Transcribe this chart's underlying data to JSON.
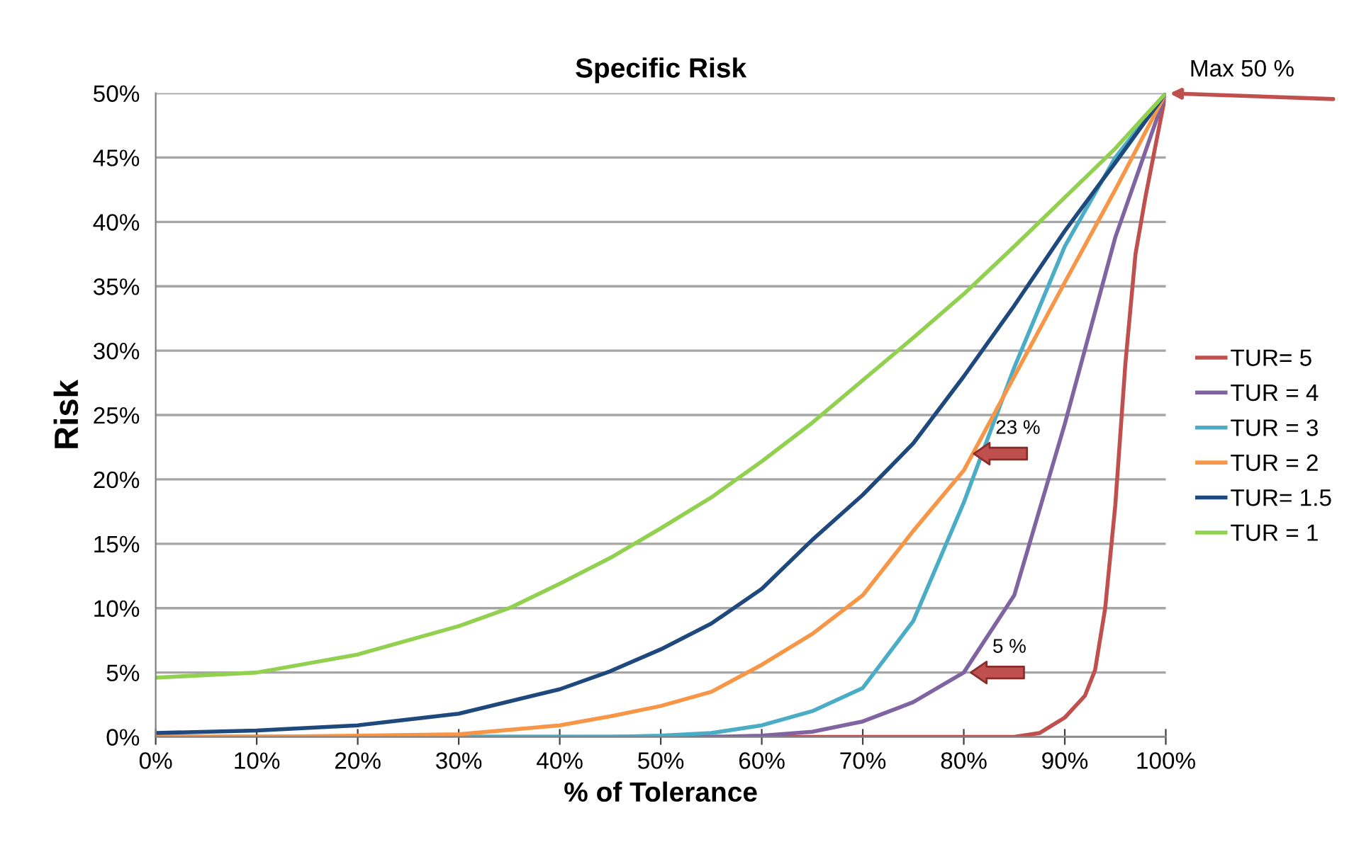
{
  "chart_data": {
    "type": "line",
    "title": "Specific Risk",
    "xlabel": "% of Tolerance",
    "ylabel": "Risk",
    "xlim": [
      0,
      100
    ],
    "ylim": [
      0,
      50
    ],
    "xticks": [
      {
        "value": 0,
        "label": "0%"
      },
      {
        "value": 10,
        "label": "10%"
      },
      {
        "value": 20,
        "label": "20%"
      },
      {
        "value": 30,
        "label": "30%"
      },
      {
        "value": 40,
        "label": "40%"
      },
      {
        "value": 50,
        "label": "50%"
      },
      {
        "value": 60,
        "label": "60%"
      },
      {
        "value": 70,
        "label": "70%"
      },
      {
        "value": 80,
        "label": "80%"
      },
      {
        "value": 90,
        "label": "90%"
      },
      {
        "value": 100,
        "label": "100%"
      }
    ],
    "yticks": [
      {
        "value": 0,
        "label": "0%"
      },
      {
        "value": 5,
        "label": "5%"
      },
      {
        "value": 10,
        "label": "10%"
      },
      {
        "value": 15,
        "label": "15%"
      },
      {
        "value": 20,
        "label": "20%"
      },
      {
        "value": 25,
        "label": "25%"
      },
      {
        "value": 30,
        "label": "30%"
      },
      {
        "value": 35,
        "label": "35%"
      },
      {
        "value": 40,
        "label": "40%"
      },
      {
        "value": 45,
        "label": "45%"
      },
      {
        "value": 50,
        "label": "50%"
      }
    ],
    "grid": "y",
    "legend": "right",
    "marker": "none",
    "line_style": "solid",
    "series": [
      {
        "name": "TUR= 5",
        "color": "#c0504d",
        "x": [
          0,
          50,
          80,
          85,
          87.5,
          90,
          92,
          93,
          94,
          95,
          96,
          97,
          98,
          99,
          100
        ],
        "values": [
          0,
          0,
          0,
          0,
          0.3,
          1.5,
          3.2,
          5.2,
          10,
          18,
          29,
          37.5,
          42,
          46,
          50
        ]
      },
      {
        "name": "TUR = 4",
        "color": "#8064a2",
        "x": [
          0,
          50,
          55,
          60,
          65,
          70,
          75,
          80,
          85,
          90,
          95,
          100
        ],
        "values": [
          0,
          0,
          0,
          0.1,
          0.4,
          1.2,
          2.7,
          5.0,
          11,
          24.3,
          38.8,
          50
        ]
      },
      {
        "name": "TUR = 3",
        "color": "#4bacc6",
        "x": [
          0,
          40,
          45,
          50,
          55,
          60,
          65,
          70,
          75,
          80,
          85,
          90,
          95,
          100
        ],
        "values": [
          0,
          0,
          0,
          0.1,
          0.3,
          0.9,
          2.0,
          3.8,
          9,
          18.2,
          28.7,
          38.1,
          45,
          50
        ]
      },
      {
        "name": "TUR = 2",
        "color": "#f79646",
        "x": [
          0,
          10,
          20,
          30,
          40,
          45,
          50,
          55,
          60,
          65,
          70,
          75,
          80,
          85,
          90,
          95,
          100
        ],
        "values": [
          0,
          0,
          0.1,
          0.2,
          0.9,
          1.6,
          2.4,
          3.5,
          5.6,
          8,
          11,
          16,
          20.7,
          28,
          35.3,
          42.5,
          50
        ]
      },
      {
        "name": "TUR= 1.5",
        "color": "#1f497d",
        "x": [
          0,
          10,
          20,
          30,
          40,
          45,
          50,
          55,
          60,
          65,
          70,
          75,
          80,
          85,
          90,
          95,
          100
        ],
        "values": [
          0.3,
          0.5,
          0.9,
          1.8,
          3.7,
          5.1,
          6.8,
          8.8,
          11.5,
          15.3,
          18.8,
          22.8,
          28,
          33.5,
          39.3,
          44.6,
          50
        ]
      },
      {
        "name": "TUR = 1",
        "color": "#92d050",
        "x": [
          0,
          10,
          20,
          30,
          35,
          40,
          45,
          50,
          55,
          60,
          65,
          70,
          75,
          80,
          85,
          90,
          95,
          100
        ],
        "values": [
          4.6,
          5.0,
          6.4,
          8.6,
          10,
          11.9,
          13.9,
          16.2,
          18.6,
          21.4,
          24.4,
          27.7,
          31,
          34.4,
          38.1,
          41.9,
          45.7,
          50
        ]
      }
    ],
    "annotations": [
      {
        "text": "Max 50 %",
        "x": 100,
        "y": 50
      },
      {
        "text": "23 %",
        "x": 80.8,
        "y": 22
      },
      {
        "text": "5 %",
        "x": 80.5,
        "y": 5
      }
    ]
  }
}
